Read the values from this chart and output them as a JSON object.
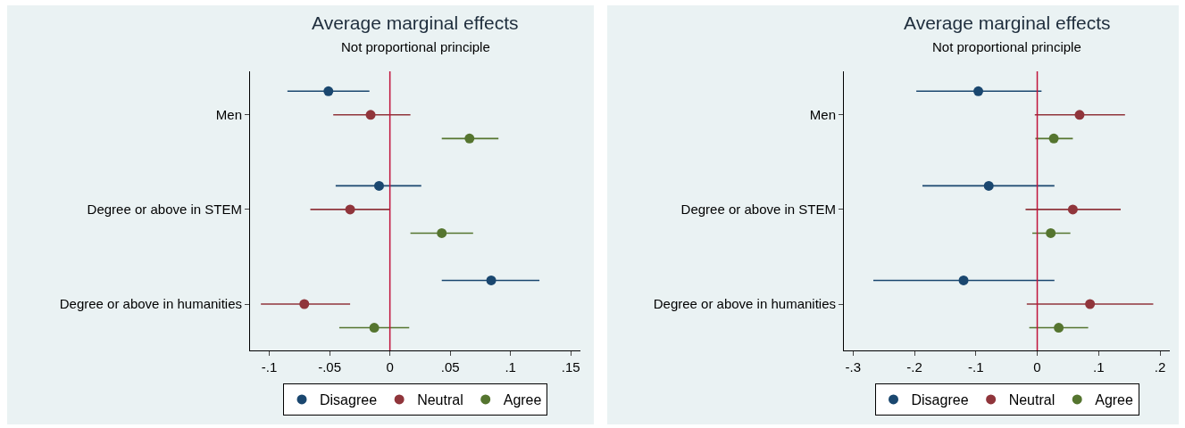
{
  "chart_data": [
    {
      "type": "scatter",
      "orientation": "horizontal",
      "title": "Average marginal effects",
      "subtitle": "Not proportional principle",
      "categories": [
        "Men",
        "Degree or above in STEM",
        "Degree or above in humanities"
      ],
      "series": [
        {
          "name": "Disagree",
          "color": "#1a476f",
          "values": [
            -0.051,
            -0.009,
            0.084
          ],
          "errors": [
            [
              -0.085,
              -0.017
            ],
            [
              -0.045,
              0.026
            ],
            [
              0.043,
              0.124
            ]
          ]
        },
        {
          "name": "Neutral",
          "color": "#90353b",
          "values": [
            -0.016,
            -0.033,
            -0.071
          ],
          "errors": [
            [
              -0.047,
              0.017
            ],
            [
              -0.066,
              0.0
            ],
            [
              -0.107,
              -0.033
            ]
          ]
        },
        {
          "name": "Agree",
          "color": "#55752f",
          "values": [
            0.066,
            0.043,
            -0.013
          ],
          "errors": [
            [
              0.043,
              0.09
            ],
            [
              0.017,
              0.069
            ],
            [
              -0.042,
              0.016
            ]
          ]
        }
      ],
      "xlim": [
        -0.116,
        0.158
      ],
      "xticks": [
        {
          "value": -0.1,
          "label": "-.1"
        },
        {
          "value": -0.05,
          "label": "-.05"
        },
        0,
        {
          "value": 0.05,
          "label": ".05"
        },
        {
          "value": 0.1,
          "label": ".1"
        },
        {
          "value": 0.15,
          "label": ".15"
        }
      ],
      "ref_lines": [
        {
          "axis": "x",
          "value": 0,
          "color": "#c0143c"
        }
      ],
      "legend": "bottom",
      "marker": "circle"
    },
    {
      "type": "scatter",
      "orientation": "horizontal",
      "title": "Average marginal effects",
      "subtitle": "Not proportional principle",
      "categories": [
        "Men",
        "Degree or above in STEM",
        "Degree or above in humanities"
      ],
      "series": [
        {
          "name": "Disagree",
          "color": "#1a476f",
          "values": [
            -0.096,
            -0.079,
            -0.12
          ],
          "errors": [
            [
              -0.197,
              0.007
            ],
            [
              -0.187,
              0.028
            ],
            [
              -0.267,
              0.028
            ]
          ]
        },
        {
          "name": "Neutral",
          "color": "#90353b",
          "values": [
            0.069,
            0.058,
            0.086
          ],
          "errors": [
            [
              -0.004,
              0.143
            ],
            [
              -0.019,
              0.136
            ],
            [
              -0.017,
              0.189
            ]
          ]
        },
        {
          "name": "Agree",
          "color": "#55752f",
          "values": [
            0.027,
            0.022,
            0.035
          ],
          "errors": [
            [
              -0.003,
              0.058
            ],
            [
              -0.008,
              0.054
            ],
            [
              -0.013,
              0.083
            ]
          ]
        }
      ],
      "xlim": [
        -0.315,
        0.216
      ],
      "xticks": [
        {
          "value": -0.3,
          "label": "-.3"
        },
        {
          "value": -0.2,
          "label": "-.2"
        },
        {
          "value": -0.1,
          "label": "-.1"
        },
        0,
        {
          "value": 0.1,
          "label": ".1"
        },
        {
          "value": 0.2,
          "label": ".2"
        }
      ],
      "ref_lines": [
        {
          "axis": "x",
          "value": 0,
          "color": "#c0143c"
        }
      ],
      "legend": "bottom",
      "marker": "circle"
    }
  ]
}
